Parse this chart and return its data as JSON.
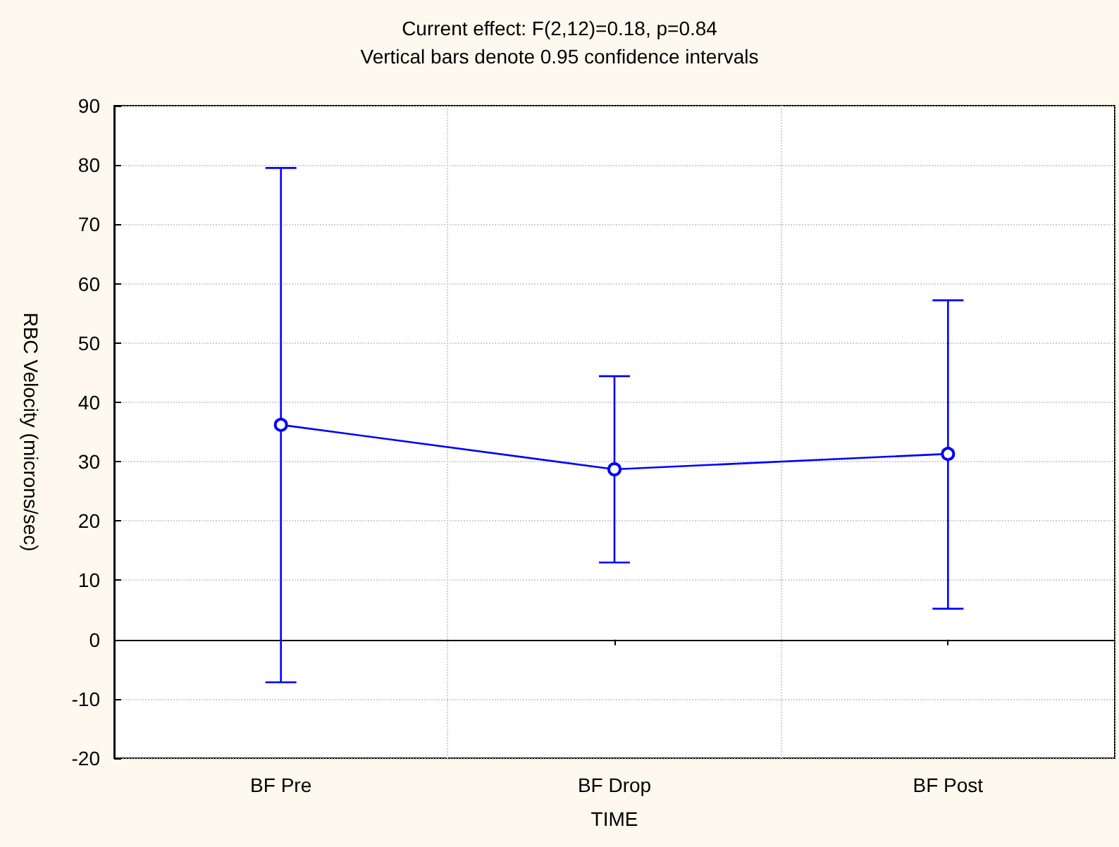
{
  "chart_data": {
    "type": "line",
    "title": "Current effect: F(2,12)=0.18, p=0.84",
    "subtitle": "Vertical bars denote 0.95 confidence intervals",
    "xlabel": "TIME",
    "ylabel": "RBC Velocity (microns/sec)",
    "categories": [
      "BF Pre",
      "BF Drop",
      "BF Post"
    ],
    "values": [
      36.2,
      28.7,
      31.3
    ],
    "errors": [
      [
        -7.2,
        79.5
      ],
      [
        13.0,
        44.4
      ],
      [
        5.2,
        57.2
      ]
    ],
    "color": "#0000ff",
    "marker": "circle",
    "line_style": "solid",
    "grid": true,
    "ylim": [
      -20,
      90
    ],
    "yticks": [
      -20,
      -10,
      0,
      10,
      20,
      30,
      40,
      50,
      60,
      70,
      80,
      90
    ]
  }
}
